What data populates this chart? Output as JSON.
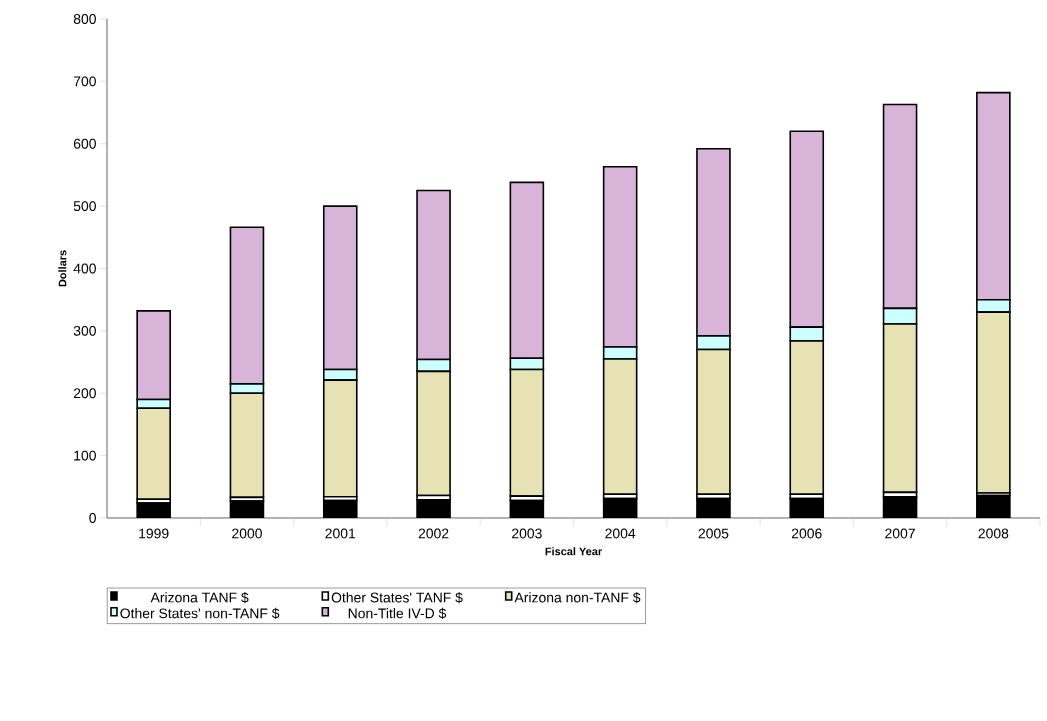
{
  "chart_data": {
    "type": "bar",
    "stacked": true,
    "xlabel": "Fiscal Year",
    "ylabel": "Dollars",
    "categories": [
      "1999",
      "2000",
      "2001",
      "2002",
      "2003",
      "2004",
      "2005",
      "2006",
      "2007",
      "2008"
    ],
    "series": [
      {
        "name": "Arizona TANF $",
        "color": "#000000",
        "values": [
          24,
          27,
          28,
          29,
          28,
          31,
          31,
          31,
          34,
          36
        ]
      },
      {
        "name": "Other States' TANF $",
        "color": "#ffffff",
        "values": [
          6,
          6,
          6,
          7,
          7,
          7,
          7,
          7,
          7,
          4
        ]
      },
      {
        "name": "Arizona non-TANF $",
        "color": "#e6e2b4",
        "values": [
          146,
          167,
          187,
          199,
          203,
          217,
          232,
          246,
          270,
          290
        ]
      },
      {
        "name": "Other States' non-TANF $",
        "color": "#ccffff",
        "values": [
          14,
          15,
          17,
          19,
          18,
          19,
          22,
          22,
          25,
          20
        ]
      },
      {
        "name": "Non-Title IV-D $",
        "color": "#d8b4d8",
        "values": [
          142,
          251,
          262,
          271,
          282,
          289,
          300,
          314,
          327,
          332
        ]
      }
    ],
    "ylim": [
      0,
      800
    ],
    "yticks": [
      0,
      100,
      200,
      300,
      400,
      500,
      600,
      700,
      800
    ],
    "grid": false,
    "legend": "bottom"
  }
}
